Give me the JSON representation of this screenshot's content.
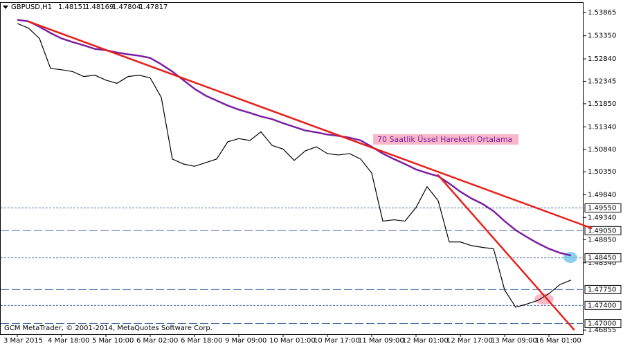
{
  "chart_data": {
    "type": "price",
    "symbol": "GBPUSD,H1",
    "ohlc_header": [
      1.48151,
      1.48169,
      1.47804,
      1.47817
    ],
    "annotation": "70 Saatlik Üssel Hareketli Ortalama",
    "footer": "GCM MetaTrader, © 2001-2014, MetaQuotes Software Corp.",
    "categories": [
      "3 Mar 2015",
      null,
      null,
      null,
      "4 Mar 18:00",
      null,
      null,
      null,
      "5 Mar 10:00",
      null,
      null,
      null,
      "6 Mar 02:00",
      null,
      null,
      null,
      "6 Mar 18:00",
      null,
      null,
      null,
      "9 Mar 09:00",
      null,
      null,
      null,
      "10 Mar 01:00",
      null,
      null,
      null,
      "10 Mar 17:00",
      null,
      null,
      null,
      "11 Mar 09:00",
      null,
      null,
      null,
      "12 Mar 01:00",
      null,
      null,
      null,
      "12 Mar 17:00",
      null,
      null,
      null,
      "13 Mar 09:00",
      null,
      null,
      null,
      "16 Mar 01:00",
      null,
      null
    ],
    "series": [
      {
        "name": "GBPUSD",
        "color": "#000000",
        "values": [
          1.5362,
          1.5352,
          1.5329,
          1.5263,
          1.526,
          1.5256,
          1.5245,
          1.5248,
          1.5237,
          1.523,
          1.5245,
          1.5248,
          1.5242,
          1.5199,
          1.5063,
          1.5052,
          1.5047,
          1.5055,
          1.5063,
          1.5101,
          1.5108,
          1.5104,
          1.5123,
          1.5093,
          1.5085,
          1.506,
          1.5081,
          1.509,
          1.5075,
          1.5072,
          1.5075,
          1.5063,
          1.5032,
          1.4926,
          1.4929,
          1.4926,
          1.4956,
          1.5002,
          1.4971,
          1.488,
          1.488,
          1.4872,
          1.4868,
          1.4865,
          1.4774,
          1.4736,
          1.4743,
          1.4751,
          1.4766,
          1.4786,
          1.4796
        ]
      },
      {
        "name": "EMA 70",
        "color": "#7b1fa2",
        "values": [
          1.537,
          1.5367,
          1.5355,
          1.5341,
          1.5329,
          1.5321,
          1.5314,
          1.5306,
          1.5303,
          1.5298,
          1.5294,
          1.5291,
          1.5286,
          1.5272,
          1.5256,
          1.5237,
          1.5218,
          1.5203,
          1.5192,
          1.5181,
          1.5172,
          1.5165,
          1.5157,
          1.5151,
          1.5142,
          1.5134,
          1.5126,
          1.5122,
          1.5117,
          1.5114,
          1.511,
          1.5104,
          1.509,
          1.5075,
          1.5063,
          1.5052,
          1.504,
          1.5032,
          1.5025,
          1.5009,
          1.4991,
          1.4976,
          1.4964,
          1.4948,
          1.4926,
          1.4906,
          1.4891,
          1.4877,
          1.4865,
          1.4856,
          1.485
        ]
      }
    ],
    "trend_lines": [
      {
        "color": "#e8201a",
        "from": [
          0.94,
          1.5367
        ],
        "to": [
          51.9,
          1.491
        ]
      },
      {
        "color": "#e8201a",
        "from": [
          37.94,
          1.5029
        ],
        "to": [
          50.3,
          1.46855
        ]
      }
    ],
    "levels": [
      {
        "value": 1.4955,
        "label": "1.49550"
      },
      {
        "value": 1.4905,
        "label": "1.49050"
      },
      {
        "value": 1.4845,
        "label": "1.48450"
      },
      {
        "value": 1.4775,
        "label": "1.47750"
      },
      {
        "value": 1.474,
        "label": "1.47400"
      },
      {
        "value": 1.47,
        "label": "1.47000"
      }
    ],
    "ylim": [
      1.46764,
      1.54078
    ],
    "yticks": [
      1.53865,
      {
        "value": 1.5335,
        "label": "1.53350"
      },
      {
        "value": 1.5284,
        "label": "1.52840"
      },
      1.52345,
      {
        "value": 1.5185,
        "label": "1.51850"
      },
      {
        "value": 1.5134,
        "label": "1.51340"
      },
      {
        "value": 1.5084,
        "label": "1.50840"
      },
      {
        "value": 1.5035,
        "label": "1.50350"
      },
      {
        "value": 1.4984,
        "label": "1.49840"
      },
      {
        "value": 1.4934,
        "label": "1.49340"
      },
      {
        "value": 1.4885,
        "label": "1.48850"
      },
      {
        "value": 1.4834,
        "label": "1.48340"
      },
      1.46855
    ]
  }
}
